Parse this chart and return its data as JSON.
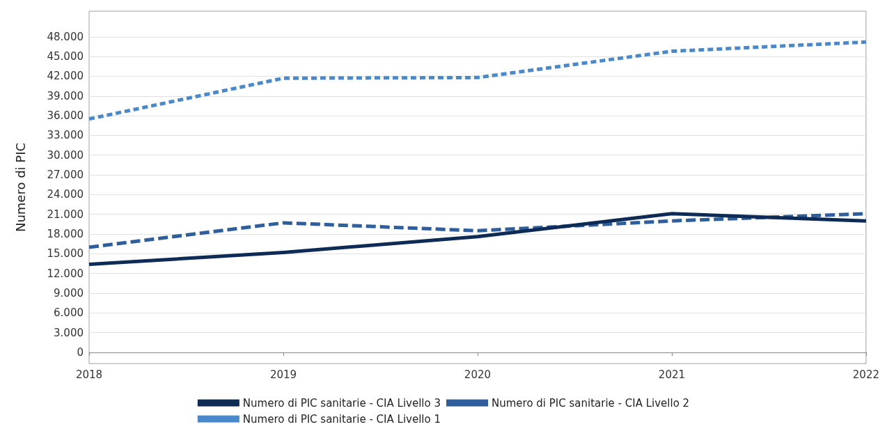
{
  "chart_data": {
    "type": "line",
    "ylabel": "Numero di PIC",
    "categories": [
      "2018",
      "2019",
      "2020",
      "2021",
      "2022"
    ],
    "series": [
      {
        "name": "Numero di PIC sanitarie - CIA Livello 3",
        "color": "#0d2b55",
        "line_style": "solid",
        "values": [
          13400,
          15200,
          17600,
          21100,
          20000
        ]
      },
      {
        "name": "Numero di PIC sanitarie - CIA Livello 2",
        "color": "#2f5e9c",
        "line_style": "dashed",
        "values": [
          16000,
          19700,
          18500,
          20000,
          21100
        ]
      },
      {
        "name": "Numero di PIC sanitarie - CIA Livello 1",
        "color": "#4a88cc",
        "line_style": "dashed",
        "values": [
          35500,
          41700,
          41800,
          45800,
          47200
        ]
      }
    ],
    "ylim": [
      -1700,
      51900
    ],
    "yticks": [
      {
        "value": 0,
        "label": "0"
      },
      {
        "value": 3000,
        "label": "3.000"
      },
      {
        "value": 6000,
        "label": "6.000"
      },
      {
        "value": 9000,
        "label": "9.000"
      },
      {
        "value": 12000,
        "label": "12.000"
      },
      {
        "value": 15000,
        "label": "15.000"
      },
      {
        "value": 18000,
        "label": "18.000"
      },
      {
        "value": 21000,
        "label": "21.000"
      },
      {
        "value": 24000,
        "label": "24.000"
      },
      {
        "value": 27000,
        "label": "27.000"
      },
      {
        "value": 30000,
        "label": "30.000"
      },
      {
        "value": 33000,
        "label": "33.000"
      },
      {
        "value": 36000,
        "label": "36.000"
      },
      {
        "value": 39000,
        "label": "39.000"
      },
      {
        "value": 42000,
        "label": "42.000"
      },
      {
        "value": 45000,
        "label": "45.000"
      },
      {
        "value": 48000,
        "label": "48.000"
      }
    ],
    "grid": "y",
    "legend": "bottom",
    "marker": "none"
  }
}
